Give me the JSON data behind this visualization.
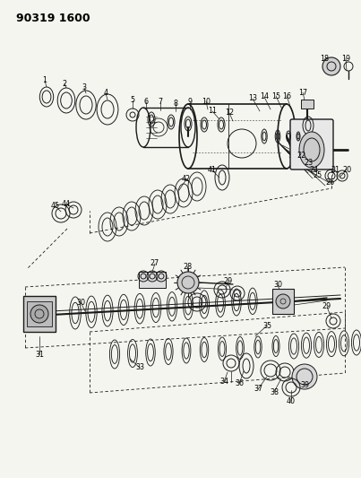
{
  "title": "90319 1600",
  "bg": "#f5f5f0",
  "lc": "#1a1a1a",
  "fig_w": 4.03,
  "fig_h": 5.33,
  "dpi": 100,
  "label_fs": 5.8
}
